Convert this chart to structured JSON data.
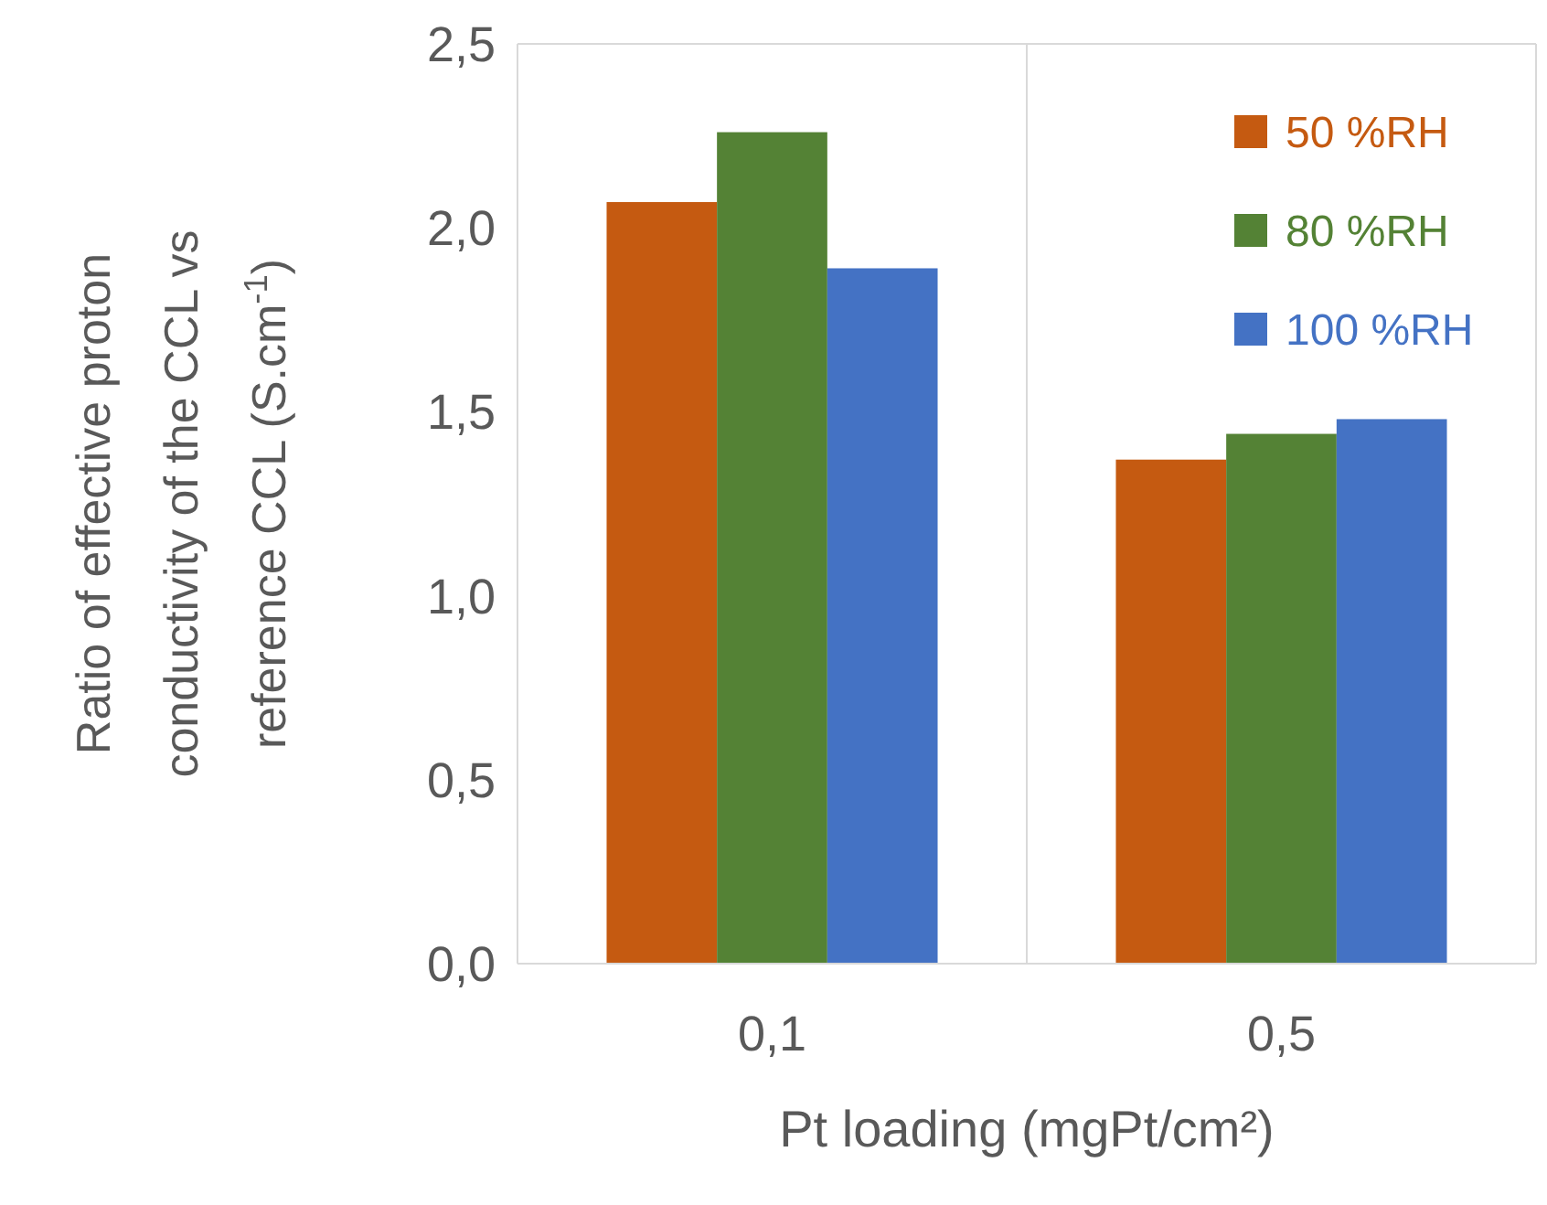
{
  "chart_data": {
    "type": "bar",
    "xlabel": "Pt loading (mgPt/cm²)",
    "ylabel": "Ratio of effective proton conductivity  of the CCL vs reference CCL (S.cm$^{-1}$)",
    "categories": [
      "0,1",
      "0,5"
    ],
    "series": [
      {
        "name": "50 %RH",
        "color": "#c55a11",
        "values": [
          2.07,
          1.37
        ]
      },
      {
        "name": "80 %RH",
        "color": "#548235",
        "values": [
          2.26,
          1.44
        ]
      },
      {
        "name": "100 %RH",
        "color": "#4472c4",
        "values": [
          1.89,
          1.48
        ]
      }
    ],
    "ylim": [
      0,
      2.5
    ],
    "yticks": [
      {
        "value": 0,
        "label": "0,0"
      },
      {
        "value": 0.5,
        "label": "0,5"
      },
      {
        "value": 1,
        "label": "1,0"
      },
      {
        "value": 1.5,
        "label": "1,5"
      },
      {
        "value": 2,
        "label": "2,0"
      },
      {
        "value": 2.5,
        "label": "2,5"
      }
    ],
    "grid": "x",
    "legend": "top right"
  }
}
